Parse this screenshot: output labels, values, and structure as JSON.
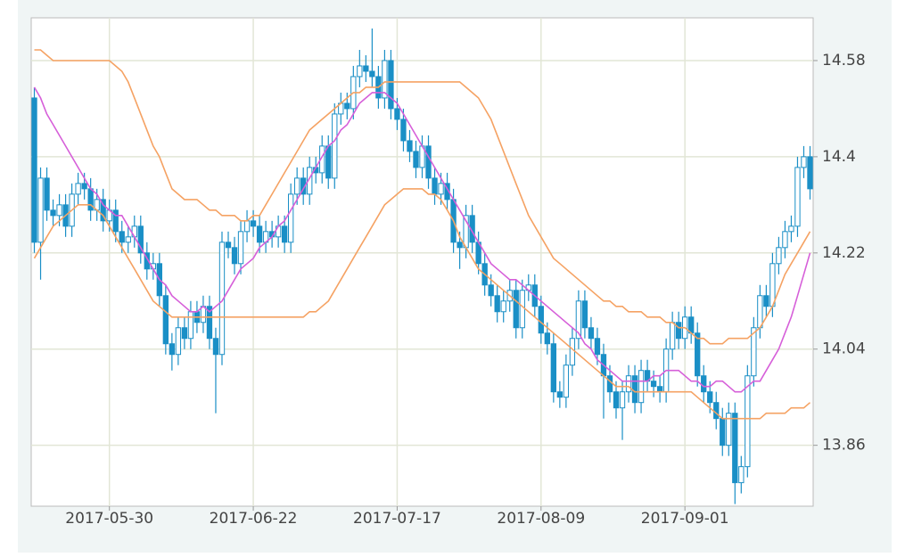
{
  "chart_data": {
    "type": "candlestick",
    "categories": [
      null,
      null,
      null,
      null,
      null,
      null,
      null,
      null,
      null,
      null,
      null,
      null,
      "2017-05-30",
      null,
      null,
      null,
      null,
      null,
      null,
      null,
      null,
      null,
      null,
      null,
      null,
      null,
      null,
      null,
      null,
      null,
      null,
      null,
      null,
      null,
      null,
      "2017-06-22",
      null,
      null,
      null,
      null,
      null,
      null,
      null,
      null,
      null,
      null,
      null,
      null,
      null,
      null,
      null,
      null,
      null,
      null,
      null,
      null,
      null,
      null,
      "2017-07-17",
      null,
      null,
      null,
      null,
      null,
      null,
      null,
      null,
      null,
      null,
      null,
      null,
      null,
      null,
      null,
      null,
      null,
      null,
      null,
      null,
      null,
      null,
      "2017-08-09",
      null,
      null,
      null,
      null,
      null,
      null,
      null,
      null,
      null,
      null,
      null,
      null,
      null,
      null,
      null,
      null,
      null,
      null,
      null,
      null,
      null,
      null,
      "2017-09-01",
      null,
      null,
      null,
      null,
      null,
      null,
      null,
      null,
      null,
      null,
      null,
      null,
      null,
      null,
      null,
      null,
      null,
      null,
      null,
      null
    ],
    "open": [
      14.51,
      14.24,
      14.36,
      14.3,
      14.29,
      14.31,
      14.27,
      14.33,
      14.35,
      14.34,
      14.3,
      14.32,
      14.28,
      14.3,
      14.26,
      14.24,
      14.25,
      14.27,
      14.22,
      14.19,
      14.2,
      14.14,
      14.05,
      14.03,
      14.08,
      14.06,
      14.11,
      14.09,
      14.12,
      14.06,
      14.03,
      14.24,
      14.23,
      14.2,
      14.26,
      14.28,
      14.27,
      14.24,
      14.26,
      14.25,
      14.27,
      14.24,
      14.33,
      14.36,
      14.33,
      14.38,
      14.37,
      14.42,
      14.36,
      14.48,
      14.5,
      14.49,
      14.55,
      14.57,
      14.56,
      14.55,
      14.51,
      14.58,
      14.49,
      14.47,
      14.43,
      14.41,
      14.38,
      14.42,
      14.36,
      14.33,
      14.35,
      14.32,
      14.24,
      14.23,
      14.29,
      14.24,
      14.2,
      14.16,
      14.14,
      14.11,
      14.13,
      14.15,
      14.08,
      14.15,
      14.16,
      14.12,
      14.07,
      14.05,
      13.96,
      13.95,
      14.01,
      14.06,
      14.13,
      14.08,
      14.06,
      14.03,
      13.99,
      13.96,
      13.93,
      13.96,
      13.99,
      13.94,
      14.0,
      13.98,
      13.97,
      13.96,
      14.04,
      14.09,
      14.06,
      14.1,
      14.07,
      13.99,
      13.96,
      13.94,
      13.91,
      13.86,
      13.92,
      13.79,
      13.82,
      13.99,
      14.08,
      14.14,
      14.12,
      14.2,
      14.23,
      14.26,
      14.27,
      14.38,
      14.4
    ],
    "high": [
      14.53,
      14.38,
      14.38,
      14.32,
      14.33,
      14.33,
      14.35,
      14.37,
      14.37,
      14.36,
      14.34,
      14.34,
      14.32,
      14.32,
      14.28,
      14.27,
      14.29,
      14.29,
      14.24,
      14.22,
      14.22,
      14.16,
      14.07,
      14.1,
      14.1,
      14.13,
      14.13,
      14.14,
      14.14,
      14.08,
      14.26,
      14.26,
      14.25,
      14.28,
      14.3,
      14.3,
      14.29,
      14.28,
      14.28,
      14.29,
      14.29,
      14.35,
      14.38,
      14.38,
      14.4,
      14.4,
      14.44,
      14.44,
      14.5,
      14.52,
      14.52,
      14.57,
      14.6,
      14.59,
      14.64,
      14.57,
      14.6,
      14.6,
      14.51,
      14.49,
      14.45,
      14.43,
      14.44,
      14.44,
      14.38,
      14.37,
      14.37,
      14.34,
      14.26,
      14.31,
      14.31,
      14.26,
      14.22,
      14.18,
      14.16,
      14.15,
      14.17,
      14.17,
      14.17,
      14.18,
      14.18,
      14.14,
      14.09,
      14.07,
      13.98,
      14.03,
      14.08,
      14.15,
      14.15,
      14.1,
      14.08,
      14.05,
      14.01,
      13.98,
      13.98,
      14.01,
      14.01,
      14.02,
      14.02,
      14.0,
      13.99,
      14.06,
      14.11,
      14.11,
      14.12,
      14.12,
      14.09,
      14.01,
      13.98,
      13.96,
      13.93,
      13.94,
      13.94,
      13.84,
      14.01,
      14.1,
      14.16,
      14.16,
      14.22,
      14.25,
      14.28,
      14.29,
      14.4,
      14.42,
      14.42
    ],
    "low": [
      14.22,
      14.17,
      14.28,
      14.27,
      14.27,
      14.25,
      14.25,
      14.31,
      14.32,
      14.28,
      14.28,
      14.26,
      14.26,
      14.24,
      14.22,
      14.22,
      14.23,
      14.2,
      14.17,
      14.17,
      14.12,
      14.03,
      14.0,
      14.01,
      14.04,
      14.04,
      14.07,
      14.07,
      14.04,
      13.92,
      14.01,
      14.21,
      14.18,
      14.18,
      14.24,
      14.25,
      14.22,
      14.22,
      14.23,
      14.23,
      14.22,
      14.22,
      14.31,
      14.31,
      14.31,
      14.35,
      14.35,
      14.34,
      14.34,
      14.46,
      14.47,
      14.47,
      14.53,
      14.54,
      14.53,
      14.49,
      14.49,
      14.47,
      14.45,
      14.41,
      14.39,
      14.36,
      14.36,
      14.34,
      14.31,
      14.31,
      14.3,
      14.22,
      14.19,
      14.21,
      14.22,
      14.18,
      14.14,
      14.12,
      14.09,
      14.09,
      14.11,
      14.06,
      14.06,
      14.13,
      14.1,
      14.05,
      14.03,
      13.94,
      13.93,
      13.93,
      13.99,
      14.04,
      14.06,
      14.04,
      14.01,
      13.91,
      13.94,
      13.91,
      13.87,
      13.94,
      13.92,
      13.92,
      13.96,
      13.95,
      13.94,
      13.94,
      14.02,
      14.04,
      14.04,
      14.05,
      13.97,
      13.94,
      13.92,
      13.89,
      13.84,
      13.84,
      13.75,
      13.77,
      13.8,
      13.97,
      14.06,
      14.1,
      14.1,
      14.18,
      14.21,
      14.24,
      14.25,
      14.36,
      14.32
    ],
    "close": [
      14.24,
      14.36,
      14.3,
      14.29,
      14.31,
      14.27,
      14.33,
      14.35,
      14.34,
      14.3,
      14.32,
      14.28,
      14.3,
      14.26,
      14.24,
      14.25,
      14.27,
      14.22,
      14.19,
      14.2,
      14.14,
      14.05,
      14.03,
      14.08,
      14.06,
      14.11,
      14.09,
      14.12,
      14.06,
      14.03,
      14.24,
      14.23,
      14.2,
      14.26,
      14.28,
      14.27,
      14.24,
      14.26,
      14.25,
      14.27,
      14.24,
      14.33,
      14.36,
      14.33,
      14.38,
      14.37,
      14.42,
      14.36,
      14.48,
      14.5,
      14.49,
      14.55,
      14.57,
      14.56,
      14.55,
      14.51,
      14.58,
      14.49,
      14.47,
      14.43,
      14.41,
      14.38,
      14.42,
      14.36,
      14.33,
      14.35,
      14.32,
      14.24,
      14.23,
      14.29,
      14.24,
      14.2,
      14.16,
      14.14,
      14.11,
      14.13,
      14.15,
      14.08,
      14.15,
      14.16,
      14.12,
      14.07,
      14.05,
      13.96,
      13.95,
      14.01,
      14.06,
      14.13,
      14.08,
      14.06,
      14.03,
      13.99,
      13.96,
      13.93,
      13.96,
      13.99,
      13.94,
      14.0,
      13.98,
      13.97,
      13.96,
      14.04,
      14.09,
      14.06,
      14.1,
      14.07,
      13.99,
      13.96,
      13.94,
      13.91,
      13.86,
      13.92,
      13.79,
      13.82,
      13.99,
      14.08,
      14.14,
      14.12,
      14.2,
      14.23,
      14.26,
      14.27,
      14.38,
      14.4,
      14.34
    ],
    "color": "#1a8fc6",
    "lines": [
      {
        "color": "#f5a263",
        "values": [
          14.6,
          14.6,
          14.59,
          14.58,
          14.58,
          14.58,
          14.58,
          14.58,
          14.58,
          14.58,
          14.58,
          14.58,
          14.58,
          14.57,
          14.56,
          14.54,
          14.51,
          14.48,
          14.45,
          14.42,
          14.4,
          14.37,
          14.34,
          14.33,
          14.32,
          14.32,
          14.32,
          14.31,
          14.3,
          14.3,
          14.29,
          14.29,
          14.29,
          14.28,
          14.28,
          14.29,
          14.29,
          14.31,
          14.33,
          14.35,
          14.37,
          14.39,
          14.41,
          14.43,
          14.45,
          14.46,
          14.47,
          14.48,
          14.49,
          14.5,
          14.51,
          14.52,
          14.52,
          14.53,
          14.53,
          14.53,
          14.54,
          14.54,
          14.54,
          14.54,
          14.54,
          14.54,
          14.54,
          14.54,
          14.54,
          14.54,
          14.54,
          14.54,
          14.54,
          14.53,
          14.52,
          14.51,
          14.49,
          14.47,
          14.44,
          14.41,
          14.38,
          14.35,
          14.32,
          14.29,
          14.27,
          14.25,
          14.23,
          14.21,
          14.2,
          14.19,
          14.18,
          14.17,
          14.16,
          14.15,
          14.14,
          14.13,
          14.13,
          14.12,
          14.12,
          14.11,
          14.11,
          14.11,
          14.1,
          14.1,
          14.1,
          14.09,
          14.09,
          14.08,
          14.08,
          14.07,
          14.06,
          14.06,
          14.05,
          14.05,
          14.05,
          14.06,
          14.06,
          14.06,
          14.06,
          14.07,
          14.08,
          14.1,
          14.12,
          14.15,
          14.18,
          14.2,
          14.22,
          14.24,
          14.26
        ]
      },
      {
        "color": "#d65fd9",
        "values": [
          14.53,
          14.51,
          14.48,
          14.46,
          14.44,
          14.42,
          14.4,
          14.38,
          14.36,
          14.34,
          14.33,
          14.31,
          14.3,
          14.29,
          14.29,
          14.27,
          14.25,
          14.23,
          14.21,
          14.19,
          14.17,
          14.16,
          14.14,
          14.13,
          14.12,
          14.11,
          14.11,
          14.12,
          14.11,
          14.12,
          14.13,
          14.15,
          14.17,
          14.19,
          14.2,
          14.21,
          14.23,
          14.24,
          14.25,
          14.27,
          14.28,
          14.3,
          14.32,
          14.34,
          14.36,
          14.38,
          14.4,
          14.42,
          14.43,
          14.45,
          14.46,
          14.48,
          14.5,
          14.51,
          14.52,
          14.52,
          14.52,
          14.51,
          14.5,
          14.48,
          14.46,
          14.44,
          14.42,
          14.4,
          14.38,
          14.36,
          14.34,
          14.32,
          14.3,
          14.28,
          14.26,
          14.24,
          14.22,
          14.2,
          14.19,
          14.18,
          14.17,
          14.17,
          14.16,
          14.15,
          14.14,
          14.13,
          14.12,
          14.11,
          14.1,
          14.09,
          14.08,
          14.07,
          14.05,
          14.04,
          14.02,
          14.01,
          14.0,
          13.99,
          13.98,
          13.98,
          13.98,
          13.98,
          13.98,
          13.99,
          13.99,
          14.0,
          14.0,
          14.0,
          13.99,
          13.98,
          13.98,
          13.97,
          13.97,
          13.98,
          13.98,
          13.97,
          13.96,
          13.96,
          13.97,
          13.98,
          13.98,
          14.0,
          14.02,
          14.04,
          14.07,
          14.1,
          14.14,
          14.18,
          14.22
        ]
      },
      {
        "color": "#f5a263",
        "values": [
          14.21,
          14.23,
          14.25,
          14.27,
          14.28,
          14.29,
          14.3,
          14.31,
          14.31,
          14.31,
          14.3,
          14.29,
          14.27,
          14.25,
          14.23,
          14.21,
          14.19,
          14.17,
          14.15,
          14.13,
          14.12,
          14.11,
          14.1,
          14.1,
          14.1,
          14.1,
          14.1,
          14.1,
          14.1,
          14.1,
          14.1,
          14.1,
          14.1,
          14.1,
          14.1,
          14.1,
          14.1,
          14.1,
          14.1,
          14.1,
          14.1,
          14.1,
          14.1,
          14.1,
          14.11,
          14.11,
          14.12,
          14.13,
          14.15,
          14.17,
          14.19,
          14.21,
          14.23,
          14.25,
          14.27,
          14.29,
          14.31,
          14.32,
          14.33,
          14.34,
          14.34,
          14.34,
          14.34,
          14.33,
          14.33,
          14.32,
          14.3,
          14.28,
          14.25,
          14.23,
          14.21,
          14.19,
          14.18,
          14.17,
          14.16,
          14.15,
          14.14,
          14.13,
          14.12,
          14.11,
          14.1,
          14.09,
          14.08,
          14.07,
          14.06,
          14.05,
          14.04,
          14.03,
          14.02,
          14.01,
          14.0,
          13.99,
          13.98,
          13.97,
          13.97,
          13.97,
          13.96,
          13.96,
          13.96,
          13.96,
          13.96,
          13.96,
          13.96,
          13.96,
          13.96,
          13.96,
          13.95,
          13.94,
          13.93,
          13.92,
          13.91,
          13.91,
          13.91,
          13.91,
          13.91,
          13.91,
          13.91,
          13.92,
          13.92,
          13.92,
          13.92,
          13.93,
          13.93,
          13.93,
          13.94
        ]
      }
    ],
    "ylim": [
      13.746,
      14.66
    ],
    "yticks": [
      13.86,
      14.04,
      14.22,
      14.4,
      14.58
    ],
    "grid": true
  }
}
